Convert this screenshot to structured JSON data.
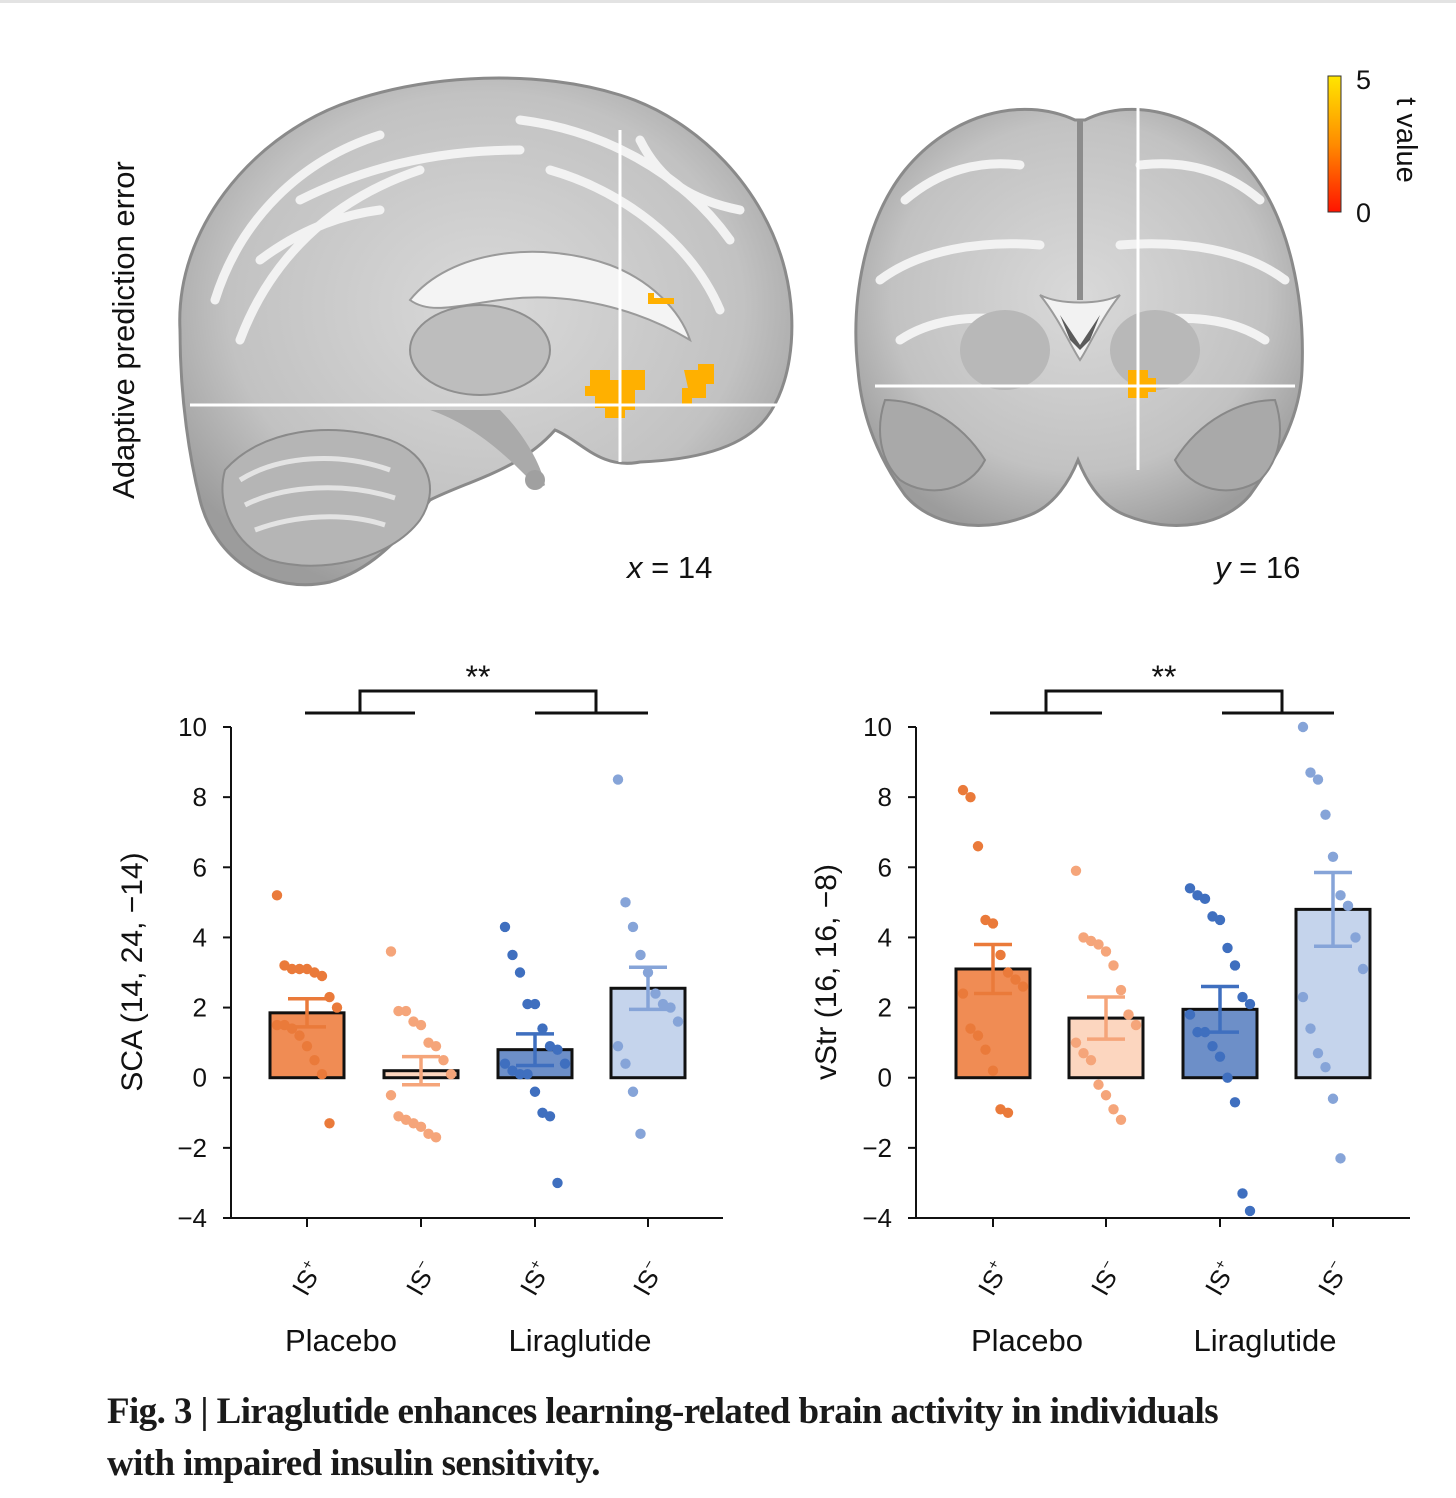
{
  "figure": {
    "row_label": "Adaptive prediction error",
    "colorbar": {
      "max_label": "5",
      "min_label": "0",
      "title": "t value",
      "colors": [
        "#ff1400",
        "#ff8c00",
        "#ffe600"
      ]
    },
    "sagittal": {
      "coord_var": "x",
      "coord_text": " = 14"
    },
    "coronal": {
      "coord_var": "y",
      "coord_text": " = 16"
    }
  },
  "chart_data": [
    {
      "type": "bar",
      "ylabel": "SCA (14, 24, −14)",
      "ylim": [
        -4,
        10
      ],
      "yticks": [
        10,
        8,
        6,
        4,
        2,
        0,
        -2,
        -4
      ],
      "ytick_labels": [
        "10",
        "8",
        "6",
        "4",
        "2",
        "0",
        "−2",
        "−4"
      ],
      "categories": [
        "IS+",
        "IS−",
        "IS+",
        "IS−"
      ],
      "category_base": "IS",
      "category_sup": [
        "+",
        "−",
        "+",
        "−"
      ],
      "groups": [
        "Placebo",
        "Liraglutide"
      ],
      "significance": "**",
      "bars": [
        {
          "group": "Placebo",
          "subgroup": "IS+",
          "mean": 1.85,
          "sem": 0.4,
          "fill": "#f08c54",
          "dot": "#ea7a3a",
          "points": [
            5.2,
            3.2,
            3.1,
            3.1,
            3.1,
            3.0,
            2.9,
            2.3,
            2.0,
            1.5,
            1.5,
            1.4,
            1.2,
            0.9,
            0.5,
            0.1,
            -1.3
          ]
        },
        {
          "group": "Placebo",
          "subgroup": "IS−",
          "mean": 0.2,
          "sem": 0.4,
          "fill": "#fcd6bf",
          "dot": "#f5a57a",
          "points": [
            3.6,
            1.9,
            1.9,
            1.6,
            1.5,
            1.0,
            0.9,
            0.5,
            0.1,
            -0.5,
            -1.1,
            -1.2,
            -1.3,
            -1.4,
            -1.6,
            -1.7
          ]
        },
        {
          "group": "Liraglutide",
          "subgroup": "IS+",
          "mean": 0.8,
          "sem": 0.45,
          "fill": "#6d8fc8",
          "dot": "#3f6fbf",
          "points": [
            4.3,
            3.5,
            3.0,
            2.1,
            2.1,
            1.4,
            0.9,
            0.8,
            0.4,
            0.4,
            0.2,
            0.1,
            0.1,
            -0.4,
            -1.0,
            -1.1,
            -3.0
          ]
        },
        {
          "group": "Liraglutide",
          "subgroup": "IS−",
          "mean": 2.55,
          "sem": 0.6,
          "fill": "#c5d4ec",
          "dot": "#86a4d8",
          "points": [
            8.5,
            5.0,
            4.3,
            3.5,
            3.0,
            2.4,
            2.1,
            2.0,
            1.6,
            0.9,
            0.4,
            -0.4,
            -1.6
          ]
        }
      ]
    },
    {
      "type": "bar",
      "ylabel": "vStr (16, 16, −8)",
      "ylim": [
        -4,
        10
      ],
      "yticks": [
        10,
        8,
        6,
        4,
        2,
        0,
        -2,
        -4
      ],
      "ytick_labels": [
        "10",
        "8",
        "6",
        "4",
        "2",
        "0",
        "−2",
        "−4"
      ],
      "categories": [
        "IS+",
        "IS−",
        "IS+",
        "IS−"
      ],
      "category_base": "IS",
      "category_sup": [
        "+",
        "−",
        "+",
        "−"
      ],
      "groups": [
        "Placebo",
        "Liraglutide"
      ],
      "significance": "**",
      "bars": [
        {
          "group": "Placebo",
          "subgroup": "IS+",
          "mean": 3.1,
          "sem": 0.7,
          "fill": "#f08c54",
          "dot": "#ea7a3a",
          "points": [
            8.2,
            8.0,
            6.6,
            4.5,
            4.4,
            3.5,
            3.0,
            2.8,
            2.6,
            2.4,
            1.4,
            1.2,
            0.8,
            0.2,
            -0.9,
            -1.0
          ]
        },
        {
          "group": "Placebo",
          "subgroup": "IS−",
          "mean": 1.7,
          "sem": 0.6,
          "fill": "#fcd6bf",
          "dot": "#f5a57a",
          "points": [
            5.9,
            4.0,
            3.9,
            3.8,
            3.6,
            3.2,
            2.5,
            1.8,
            1.5,
            1.0,
            0.7,
            0.5,
            -0.2,
            -0.5,
            -0.9,
            -1.2
          ]
        },
        {
          "group": "Liraglutide",
          "subgroup": "IS+",
          "mean": 1.95,
          "sem": 0.65,
          "fill": "#6d8fc8",
          "dot": "#3f6fbf",
          "points": [
            5.4,
            5.2,
            5.1,
            4.6,
            4.5,
            3.7,
            3.2,
            2.3,
            2.1,
            1.8,
            1.3,
            1.3,
            0.9,
            0.6,
            0.0,
            -0.7,
            -3.3,
            -3.8
          ]
        },
        {
          "group": "Liraglutide",
          "subgroup": "IS−",
          "mean": 4.8,
          "sem": 1.05,
          "fill": "#c5d4ec",
          "dot": "#86a4d8",
          "points": [
            10.0,
            8.7,
            8.5,
            7.5,
            6.3,
            5.2,
            4.9,
            4.0,
            3.1,
            2.3,
            1.4,
            0.7,
            0.3,
            -0.6,
            -2.3
          ]
        }
      ]
    }
  ],
  "caption": {
    "fig_label": "Fig. 3",
    "separator": " | ",
    "title_line1": "Liraglutide enhances learning-related brain activity in individuals",
    "title_line2": "with impaired insulin sensitivity."
  }
}
